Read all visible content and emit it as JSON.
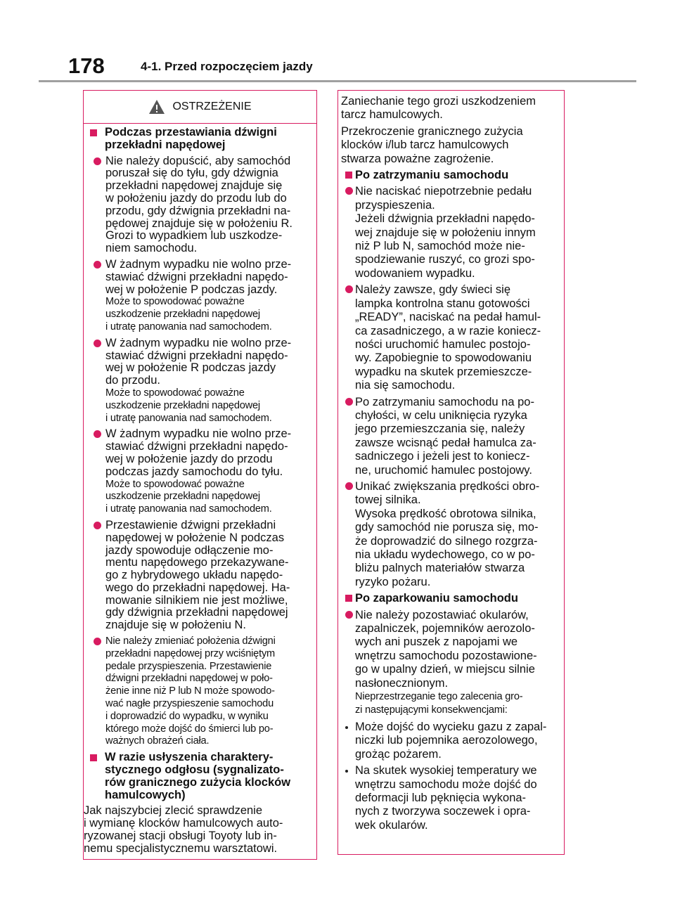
{
  "header": {
    "page_number": "178",
    "section": "4-1. Przed rozpoczęciem jazdy"
  },
  "left": {
    "title": "OSTRZEŻENIE",
    "blocks": [
      {
        "kind": "heading",
        "lines": [
          "Podczas przestawiania dźwigni",
          "przekładni napędowej"
        ]
      },
      {
        "kind": "bullet",
        "lines": [
          "Nie należy dopuścić, aby samochód",
          "poruszał się do tyłu, gdy dźwignia",
          "przekładni napędowej znajduje się",
          "w położeniu jazdy do przodu lub do",
          "przodu, gdy dźwignia przekładni na-",
          "pędowej znajduje się w położeniu R.",
          "Grozi to wypadkiem lub uszkodze-",
          "niem samochodu."
        ]
      },
      {
        "kind": "bullet",
        "lines": [
          "W żadnym wypadku nie wolno prze-",
          "stawiać dźwigni przekładni napędo-",
          "wej w położenie P podczas jazdy."
        ],
        "note": [
          "Może to spowodować poważne",
          "uszkodzenie przekładni napędowej",
          "i utratę panowania nad samochodem."
        ]
      },
      {
        "kind": "bullet",
        "lines": [
          "W żadnym wypadku nie wolno prze-",
          "stawiać dźwigni przekładni napędo-",
          "wej w położenie R podczas jazdy",
          "do przodu."
        ],
        "note": [
          "Może to spowodować poważne",
          "uszkodzenie przekładni napędowej",
          "i utratę panowania nad samochodem."
        ]
      },
      {
        "kind": "bullet",
        "lines": [
          "W żadnym wypadku nie wolno prze-",
          "stawiać dźwigni przekładni napędo-",
          "wej w położenie jazdy do przodu",
          "podczas jazdy samochodu do tyłu."
        ],
        "note": [
          "Może to spowodować poważne",
          "uszkodzenie przekładni napędowej",
          "i utratę panowania nad samochodem."
        ]
      },
      {
        "kind": "bullet",
        "lines": [
          "Przestawienie dźwigni przekładni",
          "napędowej w położenie N podczas",
          "jazdy spowoduje odłączenie mo-",
          "mentu napędowego przekazywane-",
          "go z hybrydowego układu napędo-",
          "wego do przekładni napędowej. Ha-",
          "mowanie silnikiem nie jest możliwe,",
          "gdy dźwignia przekładni napędowej",
          "znajduje się w położeniu N."
        ]
      },
      {
        "kind": "bullet",
        "size": "small",
        "lines": [
          "Nie należy zmieniać położenia dźwigni",
          "przekładni napędowej przy wciśniętym",
          "pedale przyspieszenia. Przestawienie",
          "dźwigni przekładni napędowej w poło-",
          "żenie inne niż P lub N może spowodo-",
          "wać nagłe przyspieszenie samochodu",
          "i doprowadzić do wypadku, w wyniku",
          "którego może dojść do śmierci lub po-",
          "ważnych obrażeń ciała."
        ]
      },
      {
        "kind": "heading",
        "lines": [
          "W razie usłyszenia charaktery-",
          "stycznego odgłosu (sygnalizato-",
          "rów granicznego zużycia klocków",
          "hamulcowych)"
        ]
      },
      {
        "kind": "para",
        "lines": [
          "Jak najszybciej zlecić sprawdzenie",
          "i wymianę klocków hamulcowych auto-",
          "ryzowanej stacji obsługi Toyoty lub in-",
          "nemu specjalistycznemu warsztatowi."
        ]
      }
    ]
  },
  "right": {
    "blocks": [
      {
        "kind": "para",
        "lines": [
          "Zaniechanie tego grozi uszkodzeniem",
          "tarcz hamulcowych."
        ]
      },
      {
        "kind": "para",
        "lines": [
          "Przekroczenie granicznego zużycia",
          "klocków i/lub tarcz hamulcowych",
          "stwarza poważne zagrożenie."
        ]
      },
      {
        "kind": "heading",
        "lines": [
          "Po zatrzymaniu samochodu"
        ]
      },
      {
        "kind": "bullet",
        "lines": [
          "Nie naciskać niepotrzebnie pedału",
          "przyspieszenia.",
          "Jeżeli dźwignia przekładni napędo-",
          "wej znajduje się w położeniu innym",
          "niż P lub N, samochód może nie-",
          "spodziewanie ruszyć, co grozi spo-",
          "wodowaniem wypadku."
        ]
      },
      {
        "kind": "bullet",
        "lines": [
          "Należy zawsze, gdy świeci się",
          "lampka kontrolna stanu gotowości",
          "„READY”, naciskać na pedał hamul-",
          "ca zasadniczego, a w razie koniecz-",
          "ności uruchomić hamulec postojo-",
          "wy. Zapobiegnie to spowodowaniu",
          "wypadku na skutek przemieszcze-",
          "nia się samochodu."
        ]
      },
      {
        "kind": "bullet",
        "lines": [
          "Po zatrzymaniu samochodu na po-",
          "chyłości, w celu uniknięcia ryzyka",
          "jego przemieszczania się, należy",
          "zawsze wcisnąć pedał hamulca za-",
          "sadniczego i jeżeli jest to koniecz-",
          "ne, uruchomić hamulec postojowy."
        ]
      },
      {
        "kind": "bullet",
        "lines": [
          "Unikać zwiększania prędkości obro-",
          "towej silnika.",
          "Wysoka prędkość obrotowa silnika,",
          "gdy samochód nie porusza się, mo-",
          "że doprowadzić do silnego rozgrza-",
          "nia układu wydechowego, co w po-",
          "bliżu palnych materiałów stwarza",
          "ryzyko pożaru."
        ]
      },
      {
        "kind": "heading",
        "lines": [
          "Po zaparkowaniu samochodu"
        ]
      },
      {
        "kind": "bullet",
        "lines": [
          "Nie należy pozostawiać okularów,",
          "zapalniczek, pojemników aerozolo-",
          "wych ani puszek z napojami we",
          "wnętrzu samochodu pozostawione-",
          "go w upalny dzień, w miejscu silnie",
          "nasłonecznionym."
        ],
        "note": [
          "Nieprzestrzeganie tego zalecenia gro-",
          "zi następującymi konsekwencjami:"
        ]
      },
      {
        "kind": "dot",
        "lines": [
          "Może dojść do wycieku gazu z zapal-",
          "niczki lub pojemnika aerozolowego,",
          "grożąc pożarem."
        ]
      },
      {
        "kind": "dot",
        "lines": [
          "Na skutek wysokiej temperatury we",
          "wnętrzu samochodu może dojść do",
          "deformacji lub pęknięcia wykona-",
          "nych z tworzywa soczewek i opra-",
          "wek okularów."
        ]
      }
    ]
  }
}
